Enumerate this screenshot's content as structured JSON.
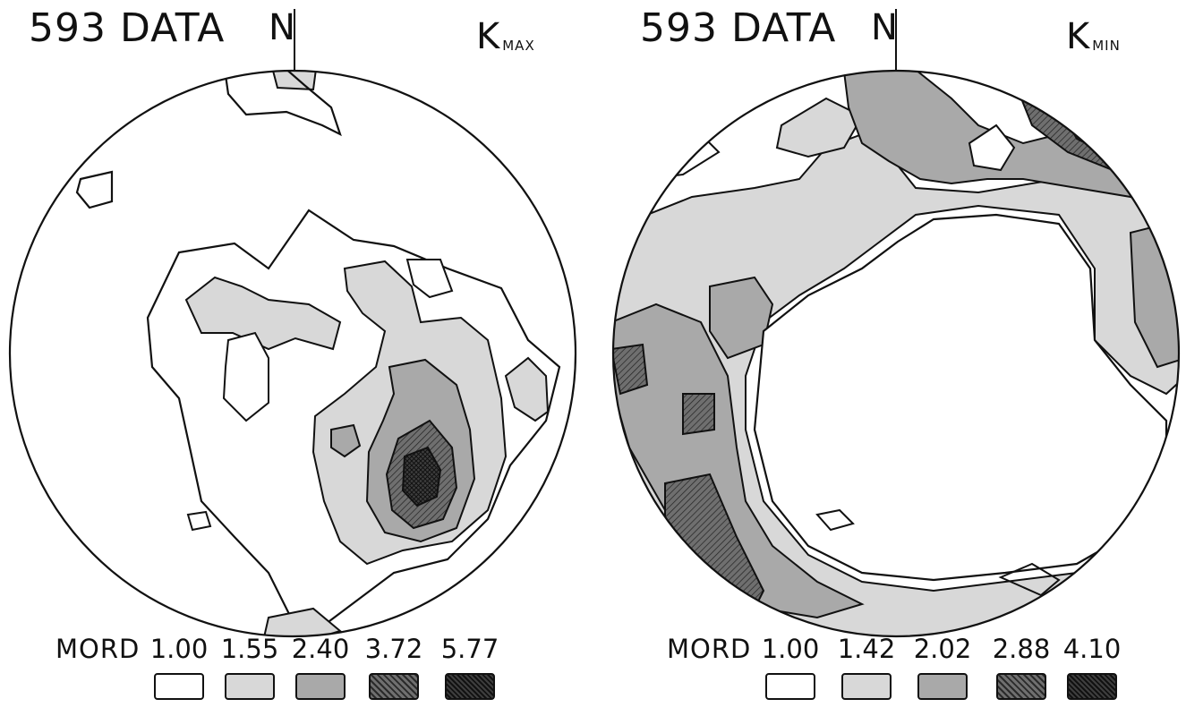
{
  "panels": [
    {
      "dataset": "593 DATA",
      "north": "N",
      "axis_main": "K",
      "axis_sub": "MAX",
      "legend": {
        "title": "MORD",
        "values": [
          "1.00",
          "1.55",
          "2.40",
          "3.72",
          "5.77"
        ]
      }
    },
    {
      "dataset": "593 DATA",
      "north": "N",
      "axis_main": "K",
      "axis_sub": "MIN",
      "legend": {
        "title": "MORD",
        "values": [
          "1.00",
          "1.42",
          "2.02",
          "2.88",
          "4.10"
        ]
      }
    }
  ],
  "colors": {
    "level1": "#ffffff",
    "level2": "#d8d8d8",
    "level3": "#a9a9a9",
    "level4": "#6f6f6f",
    "level5": "#3e3e3e",
    "outline": "#111111"
  }
}
